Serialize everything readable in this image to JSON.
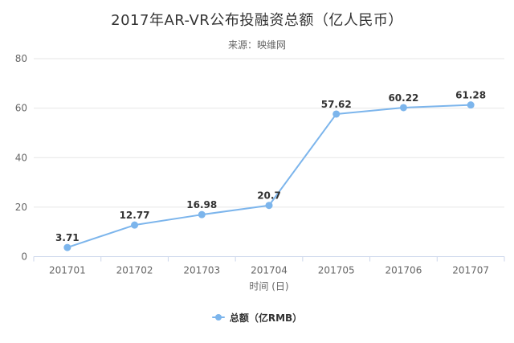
{
  "chart_data": {
    "type": "line",
    "title": "2017年AR-VR公布投融资总额（亿人民币）",
    "subtitle": "来源：映维网",
    "categories": [
      "201701",
      "201702",
      "201703",
      "201704",
      "201705",
      "201706",
      "201707"
    ],
    "series": [
      {
        "name": "总额（亿RMB）",
        "values": [
          3.71,
          12.77,
          16.98,
          20.7,
          57.62,
          60.22,
          61.28
        ],
        "data_labels": [
          "3.71",
          "12.77",
          "16.98",
          "20.7",
          "57.62",
          "60.22",
          "61.28"
        ],
        "color": "#7cb5ec"
      }
    ],
    "xlabel": "时间 (日)",
    "ylabel": "",
    "ylim": [
      0,
      80
    ],
    "yticks": [
      0,
      20,
      40,
      60,
      80
    ],
    "grid": "horizontal",
    "legend_position": "bottom"
  },
  "colors": {
    "background": "#ffffff",
    "title_text": "#333333",
    "subtitle_text": "#666666",
    "axis_label_text": "#666666",
    "data_label_text": "#333333",
    "grid_line": "#e6e6e6",
    "axis_line": "#ccd6eb",
    "series_line": "#7cb5ec"
  }
}
